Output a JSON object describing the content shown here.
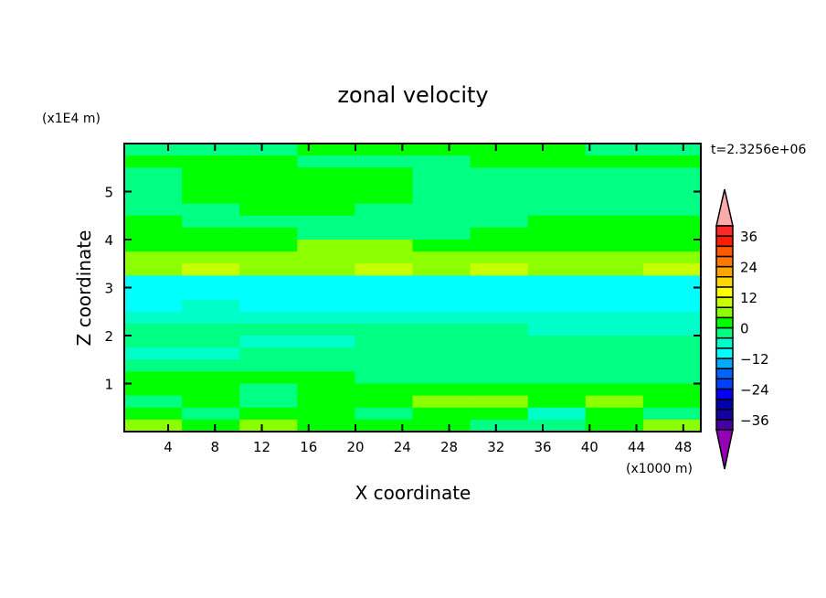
{
  "chart_data": {
    "type": "heatmap",
    "title": "zonal velocity",
    "xlabel": "X coordinate",
    "ylabel": "Z coordinate",
    "x_unit_label": "(x1000 m)",
    "y_unit_label": "(x1E4 m)",
    "time_label": "t=2.3256e+06",
    "xlim": [
      0.25,
      49.5
    ],
    "ylim": [
      0,
      6
    ],
    "x_ticks": [
      4,
      8,
      12,
      16,
      20,
      24,
      28,
      32,
      36,
      40,
      44,
      48
    ],
    "y_ticks": [
      1,
      2,
      3,
      4,
      5
    ],
    "grid": false,
    "legend_placement": "right",
    "grid_x_centers": [
      2.5,
      7.5,
      12.5,
      17.5,
      22.5,
      27.5,
      32.5,
      37.5,
      42.5,
      47.5
    ],
    "grid_z_centers_top_to_bottom": [
      5.875,
      5.625,
      5.375,
      5.125,
      4.875,
      4.625,
      4.375,
      4.125,
      3.875,
      3.625,
      3.375,
      3.125,
      2.875,
      2.625,
      2.375,
      2.125,
      1.875,
      1.625,
      1.375,
      1.125,
      0.875,
      0.625,
      0.375,
      0.125
    ],
    "values": [
      [
        -2,
        -2,
        -2,
        2,
        2,
        2,
        2,
        2,
        -2,
        -2
      ],
      [
        2,
        2,
        2,
        -2,
        -2,
        -2,
        2,
        2,
        2,
        2
      ],
      [
        -2,
        2,
        2,
        2,
        2,
        -2,
        -2,
        -2,
        -2,
        -2
      ],
      [
        -2,
        2,
        2,
        2,
        2,
        -2,
        -2,
        -2,
        -2,
        -2
      ],
      [
        -2,
        2,
        2,
        2,
        2,
        -2,
        -2,
        -2,
        -2,
        -2
      ],
      [
        -2,
        -2,
        2,
        2,
        -2,
        -2,
        -2,
        -2,
        -2,
        -2
      ],
      [
        2,
        -2,
        -2,
        -2,
        -2,
        -2,
        -2,
        2,
        2,
        2
      ],
      [
        2,
        2,
        2,
        -2,
        -2,
        -2,
        2,
        2,
        2,
        2
      ],
      [
        2,
        2,
        2,
        6,
        6,
        2,
        2,
        2,
        2,
        2
      ],
      [
        6,
        6,
        6,
        6,
        6,
        6,
        6,
        6,
        6,
        6
      ],
      [
        6,
        10,
        6,
        6,
        10,
        6,
        10,
        6,
        6,
        10
      ],
      [
        -10,
        -10,
        -10,
        -10,
        -10,
        -10,
        -10,
        -10,
        -10,
        -10
      ],
      [
        -10,
        -10,
        -10,
        -10,
        -10,
        -10,
        -10,
        -10,
        -10,
        -10
      ],
      [
        -10,
        -6,
        -10,
        -10,
        -10,
        -10,
        -10,
        -10,
        -10,
        -10
      ],
      [
        -6,
        -6,
        -6,
        -6,
        -6,
        -6,
        -6,
        -6,
        -6,
        -6
      ],
      [
        -2,
        -2,
        -2,
        -2,
        -2,
        -2,
        -2,
        -6,
        -6,
        -6
      ],
      [
        -2,
        -2,
        -6,
        -6,
        -2,
        -2,
        -2,
        -2,
        -2,
        -2
      ],
      [
        -6,
        -6,
        -2,
        -2,
        -2,
        -2,
        -2,
        -2,
        -2,
        -2
      ],
      [
        -2,
        -2,
        -2,
        -2,
        -2,
        -2,
        -2,
        -2,
        -2,
        -2
      ],
      [
        2,
        2,
        2,
        2,
        -2,
        -2,
        -2,
        -2,
        -2,
        -2
      ],
      [
        2,
        2,
        -2,
        2,
        2,
        2,
        2,
        2,
        2,
        2
      ],
      [
        -2,
        2,
        -2,
        2,
        2,
        6,
        6,
        2,
        6,
        2
      ],
      [
        2,
        -2,
        2,
        2,
        -2,
        2,
        2,
        -6,
        2,
        -2
      ],
      [
        6,
        2,
        6,
        2,
        2,
        2,
        -2,
        -2,
        2,
        6
      ]
    ],
    "colorbar": {
      "levels": [
        -40,
        -36,
        -32,
        -28,
        -24,
        -20,
        -16,
        -12,
        -8,
        -4,
        0,
        4,
        8,
        12,
        16,
        20,
        24,
        28,
        32,
        36,
        40
      ],
      "tick_labels": [
        "36",
        "24",
        "12",
        "0",
        "−12",
        "−24",
        "−36"
      ],
      "tick_values": [
        36,
        24,
        12,
        0,
        -12,
        -24,
        -36
      ],
      "colors_low_to_high": [
        "#9600b4",
        "#4600a0",
        "#1400a0",
        "#0000aa",
        "#0000ff",
        "#0040ff",
        "#0064ff",
        "#00aaff",
        "#00ffff",
        "#00ffc8",
        "#00ff82",
        "#00ff00",
        "#8cff00",
        "#c8ff00",
        "#ffff00",
        "#ffd700",
        "#ffa500",
        "#ff7800",
        "#ff5a00",
        "#ff1e00",
        "#ff2828",
        "#ffaaaa"
      ]
    }
  }
}
